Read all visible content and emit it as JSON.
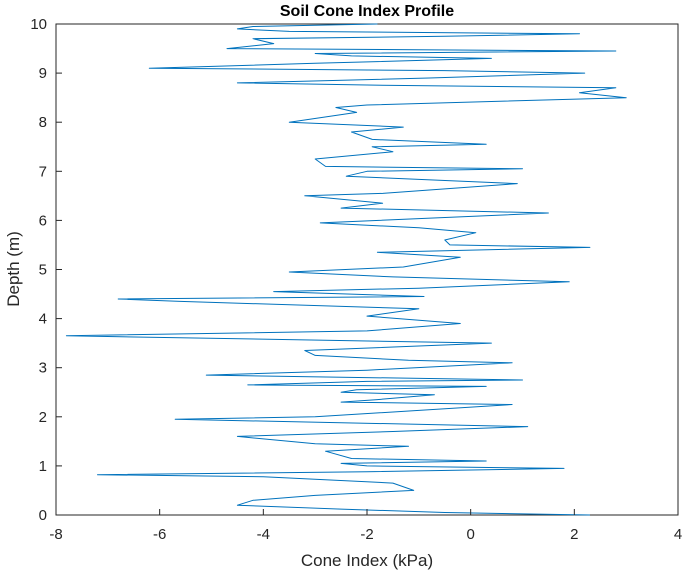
{
  "chart_data": {
    "type": "line",
    "title": "Soil Cone Index Profile",
    "xlabel": "Cone Index (kPa)",
    "ylabel": "Depth (m)",
    "xlim": [
      -8,
      4
    ],
    "ylim": [
      0,
      10
    ],
    "xticks": [
      "-8",
      "-6",
      "-4",
      "-2",
      "0",
      "2",
      "4"
    ],
    "yticks": [
      "0",
      "1",
      "2",
      "3",
      "4",
      "5",
      "6",
      "7",
      "8",
      "9",
      "10"
    ],
    "grid": false,
    "series": [
      {
        "color": "#0072BD",
        "points": [
          [
            2.3,
            0.0
          ],
          [
            -0.5,
            0.05
          ],
          [
            -2.5,
            0.12
          ],
          [
            -4.5,
            0.2
          ],
          [
            -4.2,
            0.3
          ],
          [
            -3.0,
            0.4
          ],
          [
            -1.1,
            0.5
          ],
          [
            -1.5,
            0.65
          ],
          [
            -4.0,
            0.78
          ],
          [
            -7.2,
            0.82
          ],
          [
            -2.0,
            0.88
          ],
          [
            1.8,
            0.95
          ],
          [
            -2.0,
            1.0
          ],
          [
            -2.5,
            1.05
          ],
          [
            0.3,
            1.1
          ],
          [
            -2.3,
            1.15
          ],
          [
            -2.8,
            1.3
          ],
          [
            -1.2,
            1.4
          ],
          [
            -3.0,
            1.45
          ],
          [
            -4.5,
            1.6
          ],
          [
            -1.5,
            1.7
          ],
          [
            1.1,
            1.8
          ],
          [
            -5.7,
            1.95
          ],
          [
            -3.0,
            2.0
          ],
          [
            0.8,
            2.25
          ],
          [
            -2.5,
            2.3
          ],
          [
            -1.8,
            2.35
          ],
          [
            -0.7,
            2.45
          ],
          [
            -2.5,
            2.5
          ],
          [
            -2.2,
            2.55
          ],
          [
            0.3,
            2.62
          ],
          [
            -4.3,
            2.65
          ],
          [
            -2.0,
            2.72
          ],
          [
            1.0,
            2.75
          ],
          [
            -5.1,
            2.85
          ],
          [
            -2.0,
            2.95
          ],
          [
            0.8,
            3.1
          ],
          [
            -1.2,
            3.15
          ],
          [
            -3.0,
            3.25
          ],
          [
            -3.2,
            3.35
          ],
          [
            0.4,
            3.5
          ],
          [
            -7.8,
            3.65
          ],
          [
            -2.0,
            3.75
          ],
          [
            -0.2,
            3.9
          ],
          [
            -2.0,
            4.05
          ],
          [
            -1.0,
            4.2
          ],
          [
            -5.6,
            4.35
          ],
          [
            -6.8,
            4.4
          ],
          [
            -0.9,
            4.45
          ],
          [
            -3.8,
            4.55
          ],
          [
            -1.0,
            4.62
          ],
          [
            1.9,
            4.75
          ],
          [
            -1.5,
            4.85
          ],
          [
            -3.5,
            4.95
          ],
          [
            -1.3,
            5.05
          ],
          [
            -0.2,
            5.25
          ],
          [
            -1.8,
            5.35
          ],
          [
            2.3,
            5.45
          ],
          [
            -0.4,
            5.5
          ],
          [
            -0.5,
            5.6
          ],
          [
            0.1,
            5.75
          ],
          [
            -1.0,
            5.85
          ],
          [
            -2.9,
            5.95
          ],
          [
            1.5,
            6.15
          ],
          [
            -2.5,
            6.25
          ],
          [
            -1.7,
            6.35
          ],
          [
            -3.2,
            6.5
          ],
          [
            -1.7,
            6.55
          ],
          [
            0.9,
            6.75
          ],
          [
            -2.4,
            6.9
          ],
          [
            -2.0,
            7.0
          ],
          [
            1.0,
            7.05
          ],
          [
            -2.8,
            7.1
          ],
          [
            -3.0,
            7.25
          ],
          [
            -1.5,
            7.4
          ],
          [
            -1.9,
            7.5
          ],
          [
            0.3,
            7.55
          ],
          [
            -1.9,
            7.65
          ],
          [
            -2.3,
            7.8
          ],
          [
            -1.3,
            7.9
          ],
          [
            -3.5,
            8.0
          ],
          [
            -2.2,
            8.2
          ],
          [
            -2.6,
            8.3
          ],
          [
            -2.0,
            8.35
          ],
          [
            3.0,
            8.5
          ],
          [
            2.1,
            8.6
          ],
          [
            2.8,
            8.7
          ],
          [
            -1.5,
            8.75
          ],
          [
            -4.5,
            8.8
          ],
          [
            -0.8,
            8.9
          ],
          [
            2.2,
            9.0
          ],
          [
            -0.5,
            9.05
          ],
          [
            -6.2,
            9.1
          ],
          [
            -3.0,
            9.2
          ],
          [
            0.4,
            9.3
          ],
          [
            -2.3,
            9.35
          ],
          [
            -3.0,
            9.4
          ],
          [
            2.8,
            9.45
          ],
          [
            -4.7,
            9.5
          ],
          [
            -3.8,
            9.6
          ],
          [
            -4.2,
            9.7
          ],
          [
            -0.5,
            9.75
          ],
          [
            2.1,
            9.8
          ],
          [
            -3.5,
            9.85
          ],
          [
            -4.5,
            9.9
          ],
          [
            -4.2,
            9.95
          ],
          [
            -1.8,
            10.0
          ]
        ]
      }
    ]
  }
}
